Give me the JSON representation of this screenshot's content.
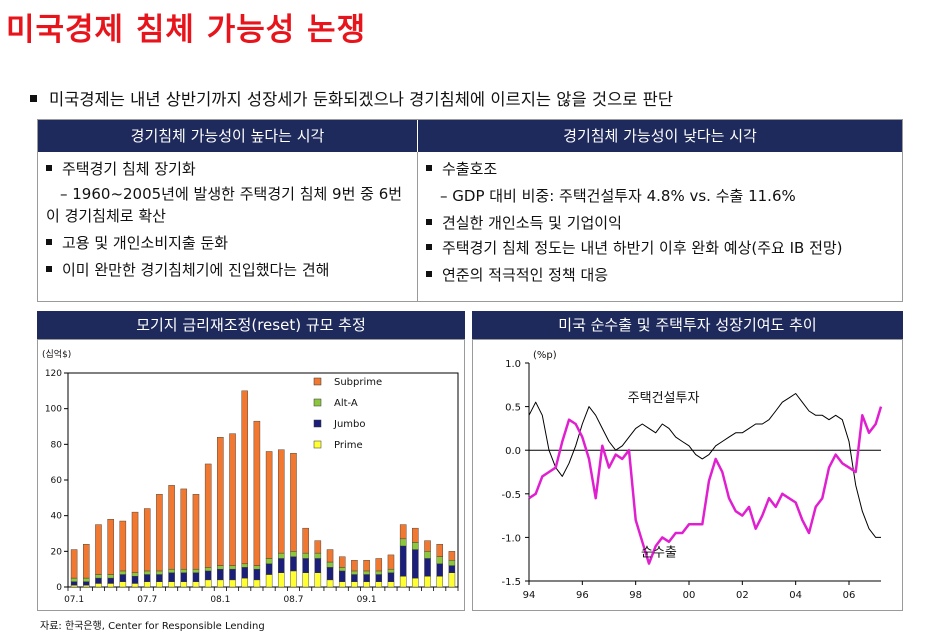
{
  "page": {
    "title": "미국경제 침체 가능성 논쟁",
    "summary": "미국경제는 내년 상반기까지 성장세가 둔화되겠으나 경기침체에 이르지는 않을 것으로 판단",
    "source": "자료: 한국은행, Center for Responsible Lending"
  },
  "table": {
    "left_header": "경기침체 가능성이 높다는 시각",
    "right_header": "경기침체 가능성이 낮다는 시각",
    "left_items": [
      {
        "text": "주택경기 침체 장기화",
        "type": "bullet"
      },
      {
        "text": "– 1960~2005년에 발생한 주택경기 침체 9번 중 6번이 경기침체로 확산",
        "type": "sub"
      },
      {
        "text": "고용 및 개인소비지출 둔화",
        "type": "bullet"
      },
      {
        "text": "이미 완만한 경기침체기에 진입했다는 견해",
        "type": "bullet"
      }
    ],
    "right_items": [
      {
        "text": "수출호조",
        "type": "bullet"
      },
      {
        "text": "– GDP 대비 비중: 주택건설투자 4.8% vs. 수출 11.6%",
        "type": "sub"
      },
      {
        "text": "견실한 개인소득 및 기업이익",
        "type": "bullet"
      },
      {
        "text": "주택경기 침체 정도는 내년 하반기 이후 완화 예상(주요 IB 전망)",
        "type": "bullet"
      },
      {
        "text": "연준의 적극적인 정책 대응",
        "type": "bullet"
      }
    ]
  },
  "chart_data": [
    {
      "type": "bar",
      "stacked": true,
      "title": "모기지 금리재조정(reset) 규모 추정",
      "unit_label": "(십억$)",
      "ylim": [
        0,
        120
      ],
      "yticks": [
        0,
        20,
        40,
        60,
        80,
        100,
        120
      ],
      "x_tick_labels": [
        "07.1",
        "07.7",
        "08.1",
        "08.7",
        "09.1"
      ],
      "x_tick_indices": [
        0,
        6,
        12,
        18,
        24
      ],
      "legend": [
        "Subprime",
        "Alt-A",
        "Jumbo",
        "Prime"
      ],
      "colors": {
        "Subprime": "#f07830",
        "Alt-A": "#8cc63f",
        "Jumbo": "#1c1f7a",
        "Prime": "#ffff33"
      },
      "series": [
        {
          "name": "Prime",
          "values": [
            1,
            1,
            2,
            2,
            3,
            2,
            3,
            3,
            3,
            3,
            3,
            4,
            4,
            4,
            5,
            4,
            7,
            8,
            9,
            8,
            8,
            4,
            3,
            3,
            3,
            3,
            3,
            6,
            5,
            6,
            6,
            8
          ]
        },
        {
          "name": "Jumbo",
          "values": [
            2,
            2,
            3,
            3,
            4,
            4,
            4,
            4,
            5,
            5,
            5,
            5,
            6,
            6,
            6,
            6,
            6,
            8,
            8,
            8,
            8,
            7,
            6,
            4,
            4,
            4,
            5,
            17,
            16,
            10,
            7,
            4
          ]
        },
        {
          "name": "Alt-A",
          "values": [
            2,
            2,
            2,
            2,
            2,
            2,
            2,
            2,
            2,
            2,
            2,
            2,
            2,
            2,
            2,
            2,
            3,
            3,
            3,
            3,
            3,
            3,
            2,
            2,
            2,
            2,
            2,
            4,
            4,
            4,
            4,
            3
          ]
        },
        {
          "name": "Subprime",
          "values": [
            16,
            19,
            28,
            31,
            28,
            34,
            35,
            43,
            47,
            45,
            42,
            58,
            72,
            74,
            97,
            81,
            60,
            58,
            55,
            14,
            7,
            7,
            6,
            6,
            6,
            7,
            8,
            8,
            8,
            6,
            7,
            5
          ]
        }
      ]
    },
    {
      "type": "line",
      "title": "미국 순수출 및 주택투자 성장기여도 추이",
      "unit_label": "(%p)",
      "ylim": [
        -1.5,
        1.0
      ],
      "yticks": [
        "1.0",
        "0.5",
        "0.0",
        "-0.5",
        "-1.0",
        "-1.5"
      ],
      "xlim": [
        1994,
        2007.2
      ],
      "x_tick_labels": [
        "94",
        "96",
        "98",
        "00",
        "02",
        "04",
        "06"
      ],
      "x_tick_values": [
        1994,
        1996,
        1998,
        2000,
        2002,
        2004,
        2006
      ],
      "series": [
        {
          "name": "주택건설투자",
          "color": "#000000",
          "x": [
            1994.0,
            1994.25,
            1994.5,
            1994.75,
            1995.0,
            1995.25,
            1995.5,
            1995.75,
            1996.0,
            1996.25,
            1996.5,
            1996.75,
            1997.0,
            1997.25,
            1997.5,
            1997.75,
            1998.0,
            1998.25,
            1998.5,
            1998.75,
            1999.0,
            1999.25,
            1999.5,
            1999.75,
            2000.0,
            2000.25,
            2000.5,
            2000.75,
            2001.0,
            2001.25,
            2001.5,
            2001.75,
            2002.0,
            2002.25,
            2002.5,
            2002.75,
            2003.0,
            2003.25,
            2003.5,
            2003.75,
            2004.0,
            2004.25,
            2004.5,
            2004.75,
            2005.0,
            2005.25,
            2005.5,
            2005.75,
            2006.0,
            2006.25,
            2006.5,
            2006.75,
            2007.0,
            2007.2
          ],
          "y": [
            0.4,
            0.55,
            0.4,
            0.0,
            -0.2,
            -0.3,
            -0.15,
            0.05,
            0.3,
            0.5,
            0.4,
            0.25,
            0.1,
            0.0,
            0.05,
            0.15,
            0.25,
            0.3,
            0.25,
            0.2,
            0.3,
            0.25,
            0.15,
            0.1,
            0.05,
            -0.05,
            -0.1,
            -0.05,
            0.05,
            0.1,
            0.15,
            0.2,
            0.2,
            0.25,
            0.3,
            0.3,
            0.35,
            0.45,
            0.55,
            0.6,
            0.65,
            0.55,
            0.45,
            0.4,
            0.4,
            0.35,
            0.4,
            0.35,
            0.1,
            -0.4,
            -0.7,
            -0.9,
            -1.0,
            -1.0
          ]
        },
        {
          "name": "순수출",
          "color": "#e020d0",
          "x": [
            1994.0,
            1994.25,
            1994.5,
            1994.75,
            1995.0,
            1995.25,
            1995.5,
            1995.75,
            1996.0,
            1996.25,
            1996.5,
            1996.75,
            1997.0,
            1997.25,
            1997.5,
            1997.75,
            1998.0,
            1998.25,
            1998.5,
            1998.75,
            1999.0,
            1999.25,
            1999.5,
            1999.75,
            2000.0,
            2000.25,
            2000.5,
            2000.75,
            2001.0,
            2001.25,
            2001.5,
            2001.75,
            2002.0,
            2002.25,
            2002.5,
            2002.75,
            2003.0,
            2003.25,
            2003.5,
            2003.75,
            2004.0,
            2004.25,
            2004.5,
            2004.75,
            2005.0,
            2005.25,
            2005.5,
            2005.75,
            2006.0,
            2006.25,
            2006.5,
            2006.75,
            2007.0,
            2007.2
          ],
          "y": [
            -0.55,
            -0.5,
            -0.3,
            -0.25,
            -0.2,
            0.1,
            0.35,
            0.3,
            0.15,
            -0.1,
            -0.55,
            0.05,
            -0.2,
            -0.05,
            -0.1,
            0.0,
            -0.8,
            -1.05,
            -1.3,
            -1.1,
            -1.0,
            -1.05,
            -0.95,
            -0.95,
            -0.85,
            -0.85,
            -0.85,
            -0.35,
            -0.1,
            -0.25,
            -0.55,
            -0.7,
            -0.75,
            -0.65,
            -0.9,
            -0.75,
            -0.55,
            -0.65,
            -0.5,
            -0.55,
            -0.6,
            -0.8,
            -0.95,
            -0.65,
            -0.55,
            -0.2,
            -0.05,
            -0.15,
            -0.2,
            -0.25,
            0.4,
            0.2,
            0.3,
            0.5
          ]
        }
      ],
      "annotations": [
        {
          "text": "주택건설투자"
        },
        {
          "text": "순수출"
        }
      ]
    }
  ]
}
